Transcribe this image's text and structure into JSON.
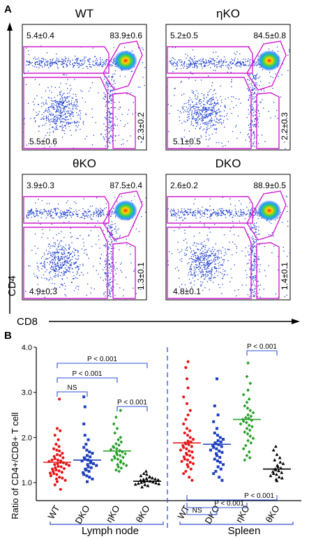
{
  "panel_a": {
    "letter": "A",
    "y_axis_label": "CD4",
    "x_axis_label": "CD8",
    "plots": [
      {
        "title": "WT",
        "double_neg": "5.5±0.6",
        "cd4_sp": "5.4±0.4",
        "dp": "83.9±0.6",
        "cd8_sp": "2.3±0.2"
      },
      {
        "title": "ηKO",
        "double_neg": "5.1±0.5",
        "cd4_sp": "5.2±0.5",
        "dp": "84.5±0.8",
        "cd8_sp": "2.2±0.3"
      },
      {
        "title": "θKO",
        "double_neg": "4.9±0.3",
        "cd4_sp": "3.9±0.3",
        "dp": "87.5±0.4",
        "cd8_sp": "1.3±0.1"
      },
      {
        "title": "DKO",
        "double_neg": "4.8±0.1",
        "cd4_sp": "2.6±0.2",
        "dp": "88.9±0.5",
        "cd8_sp": "1.4±0.1"
      }
    ]
  },
  "chart_data": {
    "type": "scatter",
    "panel_letter": "B",
    "ylabel": "Ratio of CD4+/CD8+ T cell",
    "ylim": [
      0.6,
      4.0
    ],
    "y_ticks": [
      "1.0",
      "2.0",
      "3.0",
      "4.0"
    ],
    "groups": [
      {
        "name": "Lymph node",
        "categories": [
          "WT",
          "DKO",
          "ηKO",
          "θKO"
        ]
      },
      {
        "name": "Spleen",
        "categories": [
          "WT",
          "DKO",
          "ηKO",
          "θKO"
        ]
      }
    ],
    "series": [
      {
        "tissue": "Lymph node",
        "category": "WT",
        "color": "#e41a1c",
        "marker": "circle",
        "mean": 1.45,
        "values": [
          2.85,
          2.2,
          2.15,
          2.05,
          1.95,
          1.85,
          1.8,
          1.75,
          1.72,
          1.7,
          1.65,
          1.62,
          1.6,
          1.58,
          1.55,
          1.53,
          1.5,
          1.5,
          1.48,
          1.47,
          1.45,
          1.44,
          1.42,
          1.41,
          1.4,
          1.38,
          1.36,
          1.35,
          1.33,
          1.31,
          1.3,
          1.28,
          1.26,
          1.25,
          1.23,
          1.21,
          1.2,
          1.18,
          1.15,
          1.12,
          1.1,
          1.08,
          1.05,
          1.02,
          0.95,
          0.85
        ]
      },
      {
        "tissue": "Lymph node",
        "category": "DKO",
        "color": "#1f3fbf",
        "marker": "square",
        "mean": 1.5,
        "values": [
          2.9,
          2.68,
          2.3,
          2.05,
          1.95,
          1.85,
          1.78,
          1.72,
          1.68,
          1.65,
          1.6,
          1.57,
          1.55,
          1.52,
          1.5,
          1.48,
          1.46,
          1.44,
          1.42,
          1.4,
          1.38,
          1.35,
          1.33,
          1.3,
          1.28,
          1.25,
          1.22,
          1.18,
          1.15,
          1.12,
          1.08,
          1.02
        ]
      },
      {
        "tissue": "Lymph node",
        "category": "ηKO",
        "color": "#2ca02c",
        "marker": "diamond",
        "mean": 1.7,
        "values": [
          2.6,
          2.45,
          2.3,
          2.2,
          2.1,
          2.0,
          1.95,
          1.9,
          1.86,
          1.83,
          1.8,
          1.78,
          1.75,
          1.73,
          1.71,
          1.7,
          1.68,
          1.66,
          1.64,
          1.62,
          1.6,
          1.58,
          1.56,
          1.54,
          1.52,
          1.5,
          1.48,
          1.45,
          1.42,
          1.4,
          1.38,
          1.35,
          1.32,
          1.28,
          1.25
        ]
      },
      {
        "tissue": "Lymph node",
        "category": "θKO",
        "color": "#000000",
        "marker": "triangle",
        "mean": 1.03,
        "values": [
          1.25,
          1.2,
          1.18,
          1.15,
          1.13,
          1.12,
          1.1,
          1.09,
          1.08,
          1.07,
          1.06,
          1.05,
          1.04,
          1.03,
          1.02,
          1.01,
          1.0,
          0.99,
          0.98,
          0.97,
          0.96,
          0.95,
          0.93,
          0.9
        ]
      },
      {
        "tissue": "Spleen",
        "category": "WT",
        "color": "#e41a1c",
        "marker": "circle",
        "mean": 1.88,
        "values": [
          3.68,
          3.55,
          3.3,
          3.1,
          2.9,
          2.75,
          2.6,
          2.5,
          2.4,
          2.3,
          2.2,
          2.15,
          2.1,
          2.05,
          2.0,
          1.96,
          1.92,
          1.9,
          1.88,
          1.86,
          1.84,
          1.82,
          1.8,
          1.78,
          1.75,
          1.72,
          1.7,
          1.68,
          1.65,
          1.62,
          1.6,
          1.57,
          1.55,
          1.52,
          1.5,
          1.47,
          1.45,
          1.42,
          1.4,
          1.35,
          1.3,
          1.25,
          1.2,
          1.12,
          1.05
        ]
      },
      {
        "tissue": "Spleen",
        "category": "DKO",
        "color": "#1f3fbf",
        "marker": "square",
        "mean": 1.85,
        "values": [
          3.3,
          2.7,
          2.5,
          2.35,
          2.2,
          2.1,
          2.05,
          2.0,
          1.96,
          1.93,
          1.9,
          1.88,
          1.86,
          1.84,
          1.82,
          1.8,
          1.78,
          1.75,
          1.72,
          1.7,
          1.67,
          1.64,
          1.6,
          1.56,
          1.52,
          1.48,
          1.45,
          1.4,
          1.35,
          1.3,
          1.25,
          1.2,
          1.12,
          1.05
        ]
      },
      {
        "tissue": "Spleen",
        "category": "ηKO",
        "color": "#2ca02c",
        "marker": "diamond",
        "mean": 2.4,
        "values": [
          3.65,
          3.35,
          3.2,
          3.05,
          2.95,
          2.85,
          2.78,
          2.7,
          2.65,
          2.6,
          2.55,
          2.5,
          2.47,
          2.44,
          2.42,
          2.4,
          2.38,
          2.36,
          2.33,
          2.3,
          2.27,
          2.24,
          2.2,
          2.16,
          2.12,
          2.08,
          2.03,
          1.98,
          1.93,
          1.88,
          1.82,
          1.75,
          1.68,
          1.6,
          1.55,
          1.5
        ]
      },
      {
        "tissue": "Spleen",
        "category": "θKO",
        "color": "#000000",
        "marker": "triangle",
        "mean": 1.3,
        "values": [
          1.8,
          1.72,
          1.62,
          1.55,
          1.5,
          1.45,
          1.42,
          1.38,
          1.35,
          1.32,
          1.3,
          1.28,
          1.26,
          1.24,
          1.22,
          1.2,
          1.18,
          1.15,
          1.12,
          1.1,
          1.07,
          1.04
        ]
      }
    ],
    "comparisons": [
      {
        "tissue": "Lymph node",
        "from": "WT",
        "to": "DKO",
        "label": "NS"
      },
      {
        "tissue": "Lymph node",
        "from": "WT",
        "to": "ηKO",
        "label": "P < 0.001"
      },
      {
        "tissue": "Lymph node",
        "from": "WT",
        "to": "θKO",
        "label": "P < 0.001"
      },
      {
        "tissue": "Lymph node",
        "from": "ηKO",
        "to": "θKO",
        "label": "P < 0.001"
      },
      {
        "tissue": "Spleen",
        "from": "ηKO",
        "to": "θKO",
        "label": "P < 0.001"
      },
      {
        "tissue": "Spleen",
        "from": "WT",
        "to": "DKO",
        "label": "NS"
      },
      {
        "tissue": "Spleen",
        "from": "WT",
        "to": "ηKO",
        "label": "P < 0.001"
      },
      {
        "tissue": "Spleen",
        "from": "WT",
        "to": "θKO",
        "label": "P < 0.001"
      }
    ]
  }
}
